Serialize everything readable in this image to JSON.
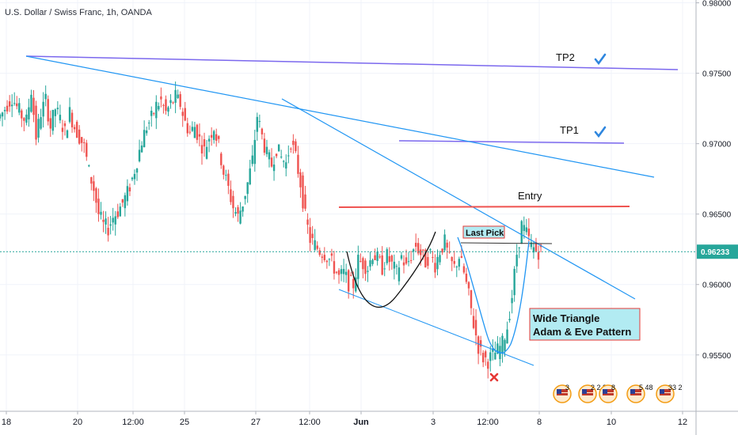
{
  "header": {
    "title": "U.S. Dollar / Swiss Franc, 1h, OANDA"
  },
  "colors": {
    "up": "#26a69a",
    "down": "#ef5350",
    "trendline": "#2196f3",
    "tp_line": "#7b68ee",
    "entry_line": "#ef5350",
    "last_line": "#26a69a",
    "check": "#2e86de",
    "cross": "#e53935",
    "pattern_box_fill": "#b2ebf2",
    "pattern_box_border": "#e53935",
    "price_tag_bg": "#26a69a"
  },
  "chart_data": {
    "type": "candlestick",
    "title": "U.S. Dollar / Swiss Franc, 1h, OANDA",
    "x_tick_labels": [
      "18",
      "20",
      "12:00",
      "25",
      "27",
      "12:00",
      "Jun",
      "3",
      "12:00",
      "8",
      "10",
      "12"
    ],
    "y_tick_labels": [
      "0.98000",
      "0.97500",
      "0.97000",
      "0.96500",
      "0.96000",
      "0.95500"
    ],
    "ylim": [
      0.951,
      0.9802
    ],
    "y_ticks": [
      0.98,
      0.975,
      0.97,
      0.965,
      0.96,
      0.955
    ],
    "last_price": 0.96233,
    "last_price_label": "0.96233",
    "grid": true,
    "price_path": [
      0.9722,
      0.9728,
      0.9733,
      0.9726,
      0.972,
      0.9716,
      0.9738,
      0.9705,
      0.9722,
      0.9731,
      0.9712,
      0.9725,
      0.9717,
      0.9708,
      0.9722,
      0.9712,
      0.9705,
      0.9698,
      0.968,
      0.9668,
      0.965,
      0.9642,
      0.964,
      0.9648,
      0.9652,
      0.9658,
      0.9665,
      0.9675,
      0.9688,
      0.9702,
      0.9712,
      0.9718,
      0.9727,
      0.973,
      0.9722,
      0.9728,
      0.9733,
      0.9728,
      0.9715,
      0.9708,
      0.9712,
      0.9703,
      0.9695,
      0.9705,
      0.9712,
      0.9698,
      0.968,
      0.9668,
      0.9655,
      0.9648,
      0.9658,
      0.9672,
      0.9688,
      0.972,
      0.9705,
      0.9692,
      0.9685,
      0.9697,
      0.969,
      0.9686,
      0.9702,
      0.969,
      0.9672,
      0.9648,
      0.9632,
      0.9628,
      0.9624,
      0.9622,
      0.9618,
      0.9612,
      0.9605,
      0.9608,
      0.9601,
      0.96,
      0.9617,
      0.9615,
      0.9612,
      0.9622,
      0.9618,
      0.9612,
      0.962,
      0.9614,
      0.9608,
      0.962,
      0.9612,
      0.9621,
      0.9628,
      0.9622,
      0.9616,
      0.9622,
      0.9614,
      0.9624,
      0.963,
      0.9617,
      0.9612,
      0.962,
      0.9608,
      0.9592,
      0.9572,
      0.9556,
      0.9548,
      0.9546,
      0.955,
      0.9553,
      0.9558,
      0.957,
      0.9592,
      0.9622,
      0.9642,
      0.9636,
      0.9627,
      0.9624,
      0.9623
    ],
    "annotations": [
      "Entry",
      "Last Pick",
      "TP1",
      "TP2",
      "Wide Triangle",
      "Adam & Eve Pattern"
    ],
    "trendlines": [
      {
        "name": "TP2",
        "from": [
          0.9762,
          "18"
        ],
        "to": [
          0.9752,
          "12"
        ]
      },
      {
        "name": "TP1",
        "price": 0.9699
      },
      {
        "name": "Entry",
        "price": 0.965
      }
    ]
  },
  "labels": {
    "entry": "Entry",
    "last_pick": "Last Pick",
    "tp1": "TP1",
    "tp2": "TP2",
    "pattern_line1": "Wide Triangle",
    "pattern_line2": "Adam & Eve Pattern"
  },
  "event_badges": [
    {
      "icon": "us-flag-icon",
      "count": "3"
    },
    {
      "icon": "us-flag-icon",
      "count": "2 2 8"
    },
    {
      "icon": "us-flag-icon",
      "count": "8"
    },
    {
      "icon": "us-flag-icon",
      "count": "5 48"
    },
    {
      "icon": "us-flag-icon",
      "count": "33 2"
    }
  ]
}
